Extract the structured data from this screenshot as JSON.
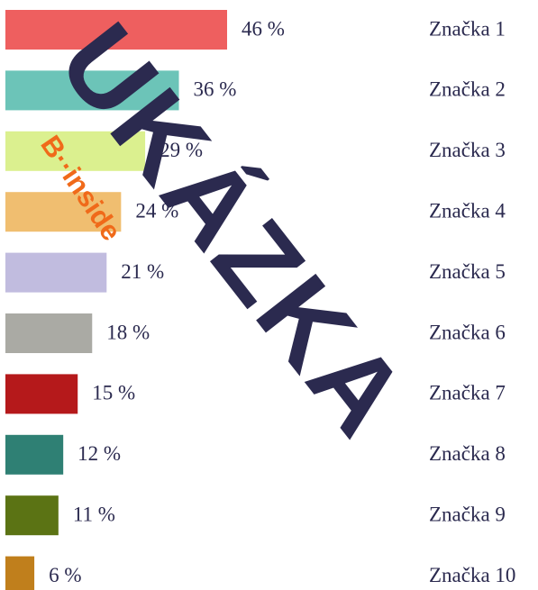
{
  "chart_data": {
    "type": "bar",
    "orientation": "horizontal",
    "categories": [
      "Značka 1",
      "Značka 2",
      "Značka 3",
      "Značka 4",
      "Značka 5",
      "Značka 6",
      "Značka 7",
      "Značka 8",
      "Značka 9",
      "Značka 10"
    ],
    "values": [
      46,
      36,
      29,
      24,
      21,
      18,
      15,
      12,
      11,
      6
    ],
    "value_labels": [
      "46 %",
      "36 %",
      "29 %",
      "24 %",
      "21 %",
      "18 %",
      "15 %",
      "12 %",
      "11 %",
      "6 %"
    ],
    "colors": [
      "#ee5f5f",
      "#6cc4b8",
      "#dbf08f",
      "#f0be70",
      "#c1bcdf",
      "#aaaaa4",
      "#b5191b",
      "#2f8074",
      "#5b7314",
      "#c07f1c"
    ],
    "annotations": [
      "UKÁZKA",
      "B··inside"
    ]
  }
}
